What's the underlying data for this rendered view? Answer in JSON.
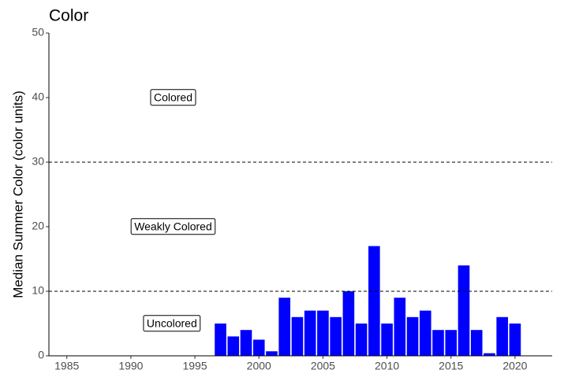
{
  "chart_data": {
    "type": "bar",
    "title": "Color",
    "y_label": "Median Summer Color (color units)",
    "x": [
      1997,
      1998,
      1999,
      2000,
      2001,
      2002,
      2003,
      2004,
      2005,
      2006,
      2007,
      2008,
      2009,
      2010,
      2011,
      2012,
      2013,
      2014,
      2015,
      2016,
      2017,
      2018,
      2019,
      2020
    ],
    "values": [
      5,
      3,
      4,
      2.5,
      0.7,
      9,
      6,
      7,
      7,
      6,
      10,
      5,
      17,
      5,
      9,
      6,
      7,
      4,
      4,
      14,
      4,
      0.4,
      6,
      5
    ],
    "color": "#0000ff",
    "xlim": [
      1983.6,
      2022.9
    ],
    "xticks": [
      1985,
      1990,
      1995,
      2000,
      2005,
      2010,
      2015,
      2020
    ],
    "ylim": [
      0,
      50
    ],
    "yticks": [
      0,
      10,
      20,
      30,
      40,
      50
    ],
    "hlines": [
      10,
      30
    ],
    "annotations": [
      {
        "text": "Colored",
        "x": 1993.3,
        "y": 40
      },
      {
        "text": "Weakly Colored",
        "x": 1993.3,
        "y": 20
      },
      {
        "text": "Uncolored",
        "x": 1993.2,
        "y": 5
      }
    ]
  }
}
